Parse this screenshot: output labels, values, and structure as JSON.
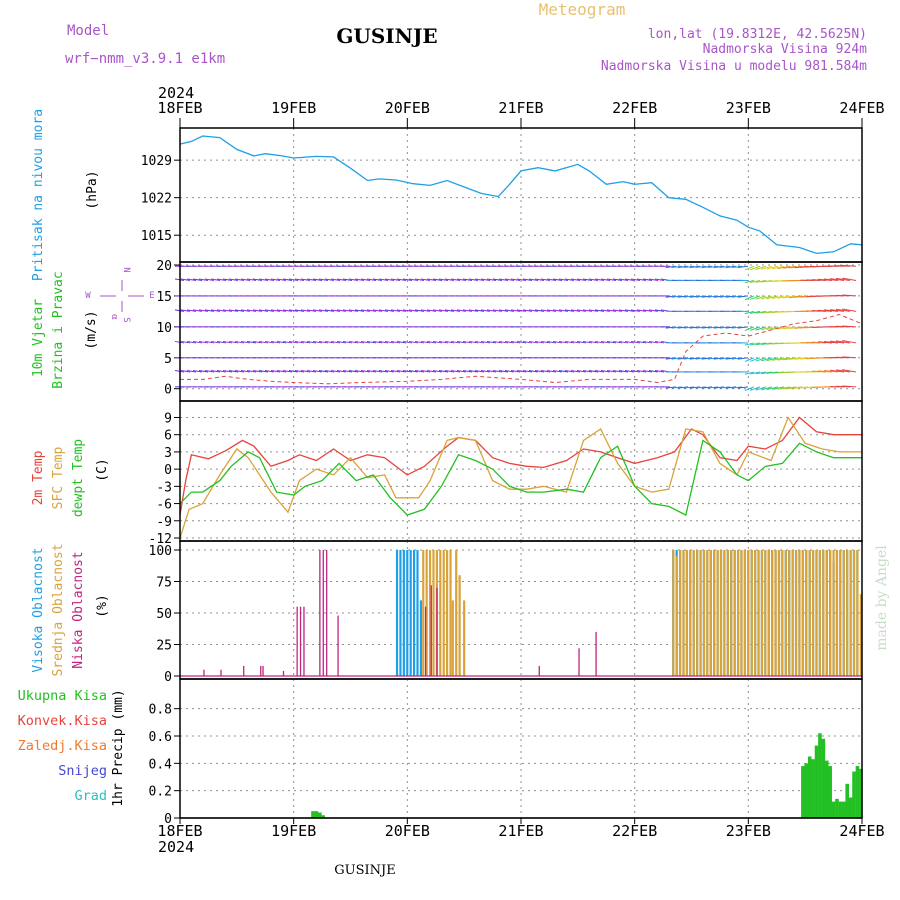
{
  "header": {
    "model_label": "Model",
    "model_name": "wrf−nmm_v3.9.1 e1km",
    "location": "GUSINJE",
    "meteogram_label": "Meteogram",
    "coords": "lon,lat (19.8312E, 42.5625N)",
    "elevation": "Nadmorska Visina 924m",
    "model_elevation": "Nadmorska Visina u modelu 981.584m",
    "year_top": "2024",
    "year_bottom": "2024",
    "footer_location": "GUSINJE",
    "watermark": "made by Angel"
  },
  "colors": {
    "pressure": "#1ea0e6",
    "temp2m": "#e8433a",
    "sfc_temp": "#d9a33a",
    "dewpt": "#22c022",
    "high_cloud": "#1ea0e6",
    "mid_cloud": "#d9a33a",
    "low_cloud": "#c0247e",
    "total_precip": "#22c022",
    "conv_precip": "#e8433a",
    "freezing": "#f07a2a",
    "snow": "#4646d8",
    "graupel": "#2ac0c0",
    "wind_calm": "#8a2be2",
    "wind_model_label": "#a855c8"
  },
  "chart_data": {
    "type": "line",
    "x_ticks": [
      "18FEB",
      "19FEB",
      "20FEB",
      "21FEB",
      "22FEB",
      "23FEB",
      "24FEB"
    ],
    "x_range_days": [
      0,
      6
    ],
    "panels": [
      {
        "id": "pressure",
        "ylabel_main": "Pritisak na nivou mora",
        "unit": "(hPa)",
        "yticks": [
          1015,
          1022,
          1029
        ],
        "ylim": [
          1010,
          1035
        ],
        "series": [
          {
            "name": "Pritisak na nivou mora",
            "x": [
              0,
              0.1,
              0.2,
              0.35,
              0.5,
              0.65,
              0.75,
              0.9,
              1.0,
              1.2,
              1.35,
              1.5,
              1.65,
              1.75,
              1.9,
              2.05,
              2.2,
              2.35,
              2.5,
              2.65,
              2.8,
              2.9,
              3.0,
              3.15,
              3.3,
              3.5,
              3.6,
              3.75,
              3.9,
              4.0,
              4.15,
              4.3,
              4.45,
              4.6,
              4.75,
              4.9,
              5.0,
              5.1,
              5.25,
              5.45,
              5.6,
              5.75,
              5.9,
              6.0
            ],
            "y": [
              1032,
              1032.5,
              1033.5,
              1033.2,
              1031,
              1029.8,
              1030.2,
              1029.8,
              1029.4,
              1029.7,
              1029.6,
              1027.5,
              1025.2,
              1025.5,
              1025.3,
              1024.6,
              1024.3,
              1025.2,
              1024.0,
              1022.8,
              1022.2,
              1024.5,
              1027.0,
              1027.6,
              1027.0,
              1028.2,
              1027.0,
              1024.5,
              1025.0,
              1024.5,
              1024.8,
              1022.0,
              1021.7,
              1020.2,
              1018.6,
              1017.8,
              1016.5,
              1015.8,
              1013.2,
              1012.7,
              1011.6,
              1011.9,
              1013.4,
              1013.2
            ]
          }
        ]
      },
      {
        "id": "wind",
        "ylabel_main": "10m Vjetar",
        "ylabel_sub": "Brzina i Pravac",
        "unit": "(m/s)",
        "direction_rose": {
          "n": "N",
          "s": "S",
          "w": "W",
          "e": "E",
          "arrow": "α"
        },
        "yticks": [
          0,
          5,
          10,
          15,
          20
        ],
        "ylim": [
          -1.5,
          20
        ],
        "series": [
          {
            "name": "10m Vjetar",
            "x": [
              0,
              0.2,
              0.4,
              0.6,
              0.8,
              1.0,
              1.3,
              1.6,
              2.0,
              2.3,
              2.6,
              3.0,
              3.3,
              3.6,
              4.0,
              4.2,
              4.35,
              4.45,
              4.6,
              4.8,
              5.0,
              5.2,
              5.4,
              5.6,
              5.8,
              6.0
            ],
            "y": [
              1.5,
              1.5,
              2.0,
              1.5,
              1.2,
              1.0,
              0.8,
              1.0,
              1.2,
              1.5,
              2.0,
              1.5,
              1.0,
              1.5,
              1.5,
              1.0,
              1.5,
              6.0,
              8.5,
              9.0,
              8.5,
              9.5,
              10.5,
              11.0,
              12.0,
              10.5
            ]
          }
        ]
      },
      {
        "id": "temperature",
        "ylabel_lines": [
          "2m Temp",
          "SFC Temp",
          "dewpt Temp"
        ],
        "unit": "(C)",
        "yticks": [
          -12,
          -9,
          -6,
          -3,
          0,
          3,
          6,
          9
        ],
        "ylim": [
          -12,
          11
        ],
        "series": [
          {
            "name": "2m Temp",
            "x": [
              0,
              0.05,
              0.1,
              0.25,
              0.4,
              0.55,
              0.65,
              0.8,
              0.95,
              1.05,
              1.2,
              1.35,
              1.5,
              1.65,
              1.8,
              2.0,
              2.15,
              2.35,
              2.45,
              2.6,
              2.75,
              2.9,
              3.05,
              3.2,
              3.4,
              3.55,
              3.7,
              3.85,
              4.0,
              4.2,
              4.35,
              4.5,
              4.6,
              4.75,
              4.9,
              5.0,
              5.15,
              5.3,
              5.45,
              5.6,
              5.75,
              5.9,
              6.0
            ],
            "y": [
              -8,
              -2,
              2.5,
              1.8,
              3.2,
              5.0,
              4.0,
              0.5,
              1.5,
              2.5,
              1.5,
              3.5,
              1.5,
              2.5,
              2.0,
              -1.0,
              0.5,
              4.0,
              5.5,
              5.0,
              2.0,
              1.0,
              0.5,
              0.3,
              1.5,
              3.5,
              3.0,
              2.0,
              1.0,
              2.0,
              3.0,
              7.0,
              6.0,
              2.0,
              1.5,
              4.0,
              3.5,
              5.0,
              9.0,
              6.5,
              6.0,
              6.0,
              6.0
            ]
          },
          {
            "name": "SFC Temp",
            "x": [
              0,
              0.08,
              0.2,
              0.35,
              0.5,
              0.6,
              0.8,
              0.95,
              1.05,
              1.2,
              1.35,
              1.5,
              1.65,
              1.8,
              1.9,
              2.0,
              2.1,
              2.2,
              2.35,
              2.45,
              2.6,
              2.75,
              2.9,
              3.05,
              3.2,
              3.4,
              3.55,
              3.7,
              3.85,
              4.0,
              4.15,
              4.3,
              4.45,
              4.6,
              4.75,
              4.9,
              5.0,
              5.2,
              5.35,
              5.5,
              5.65,
              5.8,
              6.0
            ],
            "y": [
              -12,
              -7,
              -6,
              -1,
              3.5,
              2.0,
              -4.0,
              -7.5,
              -2.0,
              0.0,
              -1.0,
              2.0,
              -1.5,
              -1.0,
              -5.0,
              -5.0,
              -5.0,
              -2.0,
              5.0,
              5.5,
              5.0,
              -2.0,
              -3.5,
              -3.5,
              -3.0,
              -4.0,
              5.0,
              7.0,
              1.0,
              -3.0,
              -4.0,
              -3.5,
              7.0,
              6.5,
              1.0,
              -1.0,
              3.0,
              1.5,
              9.0,
              4.5,
              3.5,
              3.0,
              3.0
            ]
          },
          {
            "name": "dewpt Temp",
            "x": [
              0,
              0.1,
              0.2,
              0.35,
              0.45,
              0.6,
              0.7,
              0.85,
              1.0,
              1.1,
              1.25,
              1.4,
              1.55,
              1.7,
              1.85,
              2.0,
              2.15,
              2.3,
              2.45,
              2.6,
              2.75,
              2.9,
              3.05,
              3.2,
              3.4,
              3.55,
              3.7,
              3.85,
              4.0,
              4.15,
              4.3,
              4.45,
              4.6,
              4.75,
              4.9,
              5.0,
              5.15,
              5.3,
              5.45,
              5.6,
              5.75,
              5.9,
              6.0
            ],
            "y": [
              -6,
              -4,
              -4,
              -2,
              0.5,
              3.0,
              2.0,
              -4.0,
              -4.5,
              -3.0,
              -2.0,
              1.0,
              -2.0,
              -1.0,
              -5.0,
              -8.0,
              -7.0,
              -3.0,
              2.5,
              1.5,
              0.0,
              -3.0,
              -4.0,
              -4.0,
              -3.5,
              -4.0,
              2.0,
              4.0,
              -3.0,
              -6.0,
              -6.5,
              -8.0,
              5.0,
              3.0,
              -1.0,
              -2.0,
              0.5,
              1.0,
              4.5,
              3.0,
              2.0,
              2.0,
              2.0
            ]
          }
        ]
      },
      {
        "id": "cloud",
        "ylabel_lines": [
          "Visoka Oblacnost",
          "Srednja Oblacnost",
          "Niska Oblacnost"
        ],
        "unit": "(%)",
        "yticks": [
          0,
          25,
          50,
          75,
          100
        ],
        "ylim": [
          0,
          100
        ],
        "series": [
          {
            "name": "Visoka Oblacnost",
            "type": "bar",
            "x": [
              1.92,
              1.95,
              1.98,
              2.01,
              2.04,
              2.07,
              2.1,
              2.13,
              4.35,
              4.38,
              4.41,
              4.44,
              4.47,
              4.5,
              4.53,
              4.56,
              4.59,
              4.62,
              4.65,
              4.68,
              4.71,
              4.74,
              4.77,
              4.8,
              4.83,
              4.86,
              4.89,
              4.92,
              4.95,
              4.98,
              5.01,
              5.04,
              5.07,
              5.1,
              5.13,
              5.16,
              5.19,
              5.22,
              5.25,
              5.28,
              5.31,
              5.34,
              5.37,
              5.4,
              5.43,
              5.46,
              5.49,
              5.52,
              5.55,
              5.58,
              5.61,
              5.64,
              5.67,
              5.7,
              5.73,
              5.76,
              5.79,
              5.82,
              5.85,
              5.88,
              5.91,
              5.94,
              5.97
            ],
            "y": [
              100,
              100,
              100,
              100,
              100,
              100,
              100,
              60,
              100,
              100,
              100,
              100,
              100,
              100,
              100,
              100,
              100,
              100,
              100,
              100,
              100,
              100,
              100,
              100,
              100,
              100,
              100,
              100,
              100,
              100,
              100,
              100,
              100,
              100,
              100,
              100,
              100,
              100,
              100,
              100,
              100,
              100,
              100,
              100,
              100,
              100,
              100,
              100,
              100,
              100,
              100,
              100,
              100,
              100,
              100,
              90,
              100,
              100,
              100,
              100,
              100,
              100,
              100
            ]
          },
          {
            "name": "Srednja Oblacnost",
            "type": "bar",
            "x": [
              2.14,
              2.17,
              2.2,
              2.23,
              2.26,
              2.29,
              2.32,
              2.35,
              2.38,
              2.4,
              2.43,
              2.46,
              2.5,
              4.34,
              4.37,
              4.4,
              4.43,
              4.46,
              4.49,
              4.52,
              4.55,
              4.58,
              4.61,
              4.64,
              4.67,
              4.7,
              4.73,
              4.76,
              4.79,
              4.82,
              4.85,
              4.88,
              4.91,
              4.94,
              4.97,
              5.0,
              5.03,
              5.06,
              5.09,
              5.12,
              5.15,
              5.18,
              5.21,
              5.24,
              5.27,
              5.3,
              5.33,
              5.36,
              5.39,
              5.42,
              5.45,
              5.48,
              5.51,
              5.54,
              5.57,
              5.6,
              5.63,
              5.66,
              5.69,
              5.72,
              5.75,
              5.78,
              5.81,
              5.84,
              5.87,
              5.9,
              5.93,
              5.96,
              5.99
            ],
            "y": [
              100,
              100,
              100,
              100,
              100,
              100,
              100,
              100,
              100,
              60,
              100,
              80,
              60,
              100,
              95,
              100,
              100,
              100,
              100,
              100,
              100,
              100,
              100,
              100,
              100,
              100,
              100,
              100,
              100,
              100,
              100,
              100,
              100,
              100,
              100,
              100,
              100,
              100,
              100,
              100,
              100,
              100,
              100,
              100,
              100,
              100,
              100,
              100,
              100,
              100,
              100,
              100,
              100,
              100,
              100,
              100,
              100,
              100,
              100,
              100,
              100,
              100,
              100,
              100,
              100,
              100,
              100,
              100,
              65
            ]
          },
          {
            "name": "Niska Oblacnost",
            "type": "bar",
            "x": [
              0.2,
              0.35,
              0.55,
              0.7,
              0.72,
              0.9,
              1.02,
              1.05,
              1.08,
              1.22,
              1.25,
              1.28,
              1.38,
              2.15,
              2.2,
              2.25,
              3.15,
              3.5,
              3.65
            ],
            "y": [
              5,
              5,
              8,
              8,
              8,
              4,
              55,
              55,
              55,
              100,
              100,
              100,
              48,
              55,
              72,
              70,
              8,
              22,
              35
            ]
          }
        ]
      },
      {
        "id": "precip",
        "ylabel_main": "1hr Precip (mm)",
        "legend": [
          "Ukupna Kisa",
          "Konvek.Kisa",
          "Zaledj.Kisa",
          "Snijeg",
          "Grad"
        ],
        "yticks": [
          0,
          0.2,
          0.4,
          0.6,
          0.8
        ],
        "ylim": [
          0,
          0.9
        ],
        "series": [
          {
            "name": "Ukupna Kisa",
            "type": "bar",
            "x": [
              1.17,
              1.2,
              1.23,
              1.26,
              5.48,
              5.51,
              5.54,
              5.57,
              5.6,
              5.63,
              5.66,
              5.69,
              5.72,
              5.75,
              5.78,
              5.81,
              5.84,
              5.87,
              5.9,
              5.93,
              5.96,
              5.99
            ],
            "y": [
              0.05,
              0.05,
              0.04,
              0.02,
              0.38,
              0.4,
              0.45,
              0.43,
              0.53,
              0.62,
              0.58,
              0.42,
              0.38,
              0.12,
              0.14,
              0.12,
              0.12,
              0.25,
              0.15,
              0.34,
              0.38,
              0.36
            ]
          }
        ]
      }
    ]
  }
}
